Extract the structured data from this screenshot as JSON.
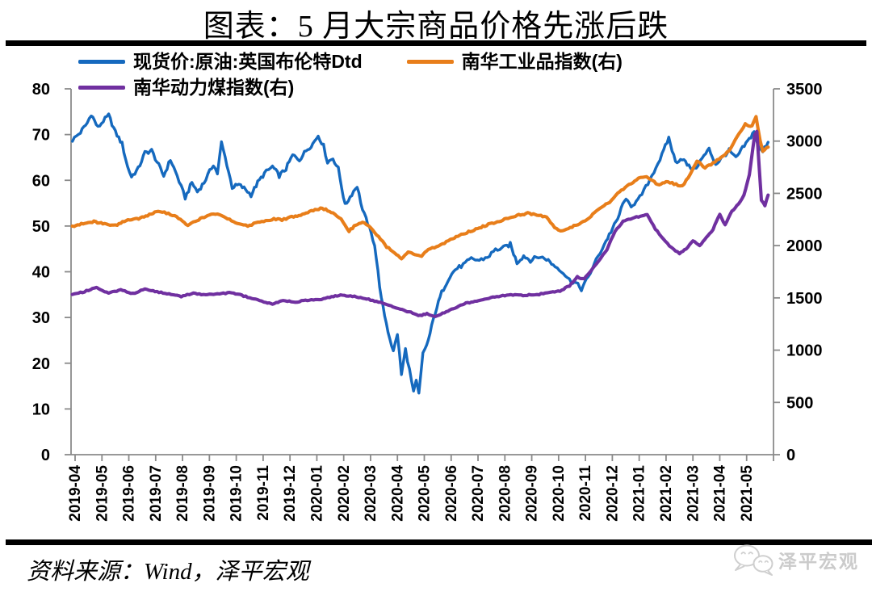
{
  "title": "图表：5 月大宗商品价格先涨后跌",
  "source_note": "资料来源：Wind，泽平宏观",
  "watermark": "泽平宏观",
  "chart_data": {
    "type": "line",
    "title": "图表：5 月大宗商品价格先涨后跌",
    "x_unit": "months since 2019-04 (0 = 2019-04 tick, fractional = day within month)",
    "x_labels": [
      "2019-04",
      "2019-05",
      "2019-06",
      "2019-07",
      "2019-08",
      "2019-09",
      "2019-10",
      "2019-11",
      "2019-12",
      "2020-01",
      "2020-02",
      "2020-03",
      "2020-04",
      "2020-05",
      "2020-06",
      "2020-07",
      "2020-08",
      "2020-09",
      "2020-10",
      "2020-11",
      "2020-12",
      "2021-01",
      "2021-02",
      "2021-03",
      "2021-04",
      "2021-05"
    ],
    "grid": false,
    "legend_position": "top-left",
    "axis_color": "#8a8a8a",
    "left_axis": {
      "min": 0,
      "max": 80,
      "ticks": [
        0,
        10,
        20,
        30,
        40,
        50,
        60,
        70,
        80
      ]
    },
    "right_axis": {
      "min": 0,
      "max": 3500,
      "ticks": [
        0,
        500,
        1000,
        1500,
        2000,
        2500,
        3000,
        3500
      ]
    },
    "series": [
      {
        "id": "brent",
        "name": "现货价:原油:英国布伦特Dtd",
        "axis": "left",
        "color": "#1569be",
        "points": [
          [
            -0.1,
            68.8
          ],
          [
            0.2,
            70.5
          ],
          [
            0.45,
            72.5
          ],
          [
            0.6,
            74.5
          ],
          [
            0.85,
            71.5
          ],
          [
            1.05,
            73
          ],
          [
            1.25,
            74.2
          ],
          [
            1.5,
            70.5
          ],
          [
            1.75,
            68
          ],
          [
            1.95,
            63
          ],
          [
            2.1,
            60.8
          ],
          [
            2.35,
            62.5
          ],
          [
            2.6,
            66
          ],
          [
            2.85,
            66.5
          ],
          [
            3.05,
            64
          ],
          [
            3.3,
            61
          ],
          [
            3.55,
            64.5
          ],
          [
            3.8,
            61
          ],
          [
            3.95,
            58.5
          ],
          [
            4.1,
            56.2
          ],
          [
            4.35,
            59.5
          ],
          [
            4.55,
            57.5
          ],
          [
            4.8,
            59.5
          ],
          [
            5.15,
            63.5
          ],
          [
            5.3,
            61.5
          ],
          [
            5.45,
            68.2
          ],
          [
            5.65,
            63.5
          ],
          [
            5.85,
            58.5
          ],
          [
            6.1,
            59
          ],
          [
            6.35,
            58
          ],
          [
            6.55,
            56.8
          ],
          [
            6.8,
            59.5
          ],
          [
            7.05,
            61.5
          ],
          [
            7.35,
            63
          ],
          [
            7.6,
            61
          ],
          [
            7.85,
            62.5
          ],
          [
            8.1,
            65.5
          ],
          [
            8.35,
            64.5
          ],
          [
            8.6,
            66.5
          ],
          [
            8.85,
            68
          ],
          [
            9.05,
            69.8
          ],
          [
            9.25,
            67.5
          ],
          [
            9.4,
            64
          ],
          [
            9.6,
            64.8
          ],
          [
            9.8,
            62.5
          ],
          [
            10.05,
            54.5
          ],
          [
            10.3,
            57
          ],
          [
            10.5,
            58.8
          ],
          [
            10.7,
            53.5
          ],
          [
            10.9,
            50.5
          ],
          [
            11.15,
            46
          ],
          [
            11.4,
            34
          ],
          [
            11.65,
            27
          ],
          [
            11.85,
            22.5
          ],
          [
            12,
            26.5
          ],
          [
            12.15,
            17.5
          ],
          [
            12.3,
            23
          ],
          [
            12.45,
            18.5
          ],
          [
            12.6,
            13.5
          ],
          [
            12.7,
            16
          ],
          [
            12.8,
            13.2
          ],
          [
            12.95,
            22
          ],
          [
            13.15,
            25
          ],
          [
            13.4,
            31
          ],
          [
            13.65,
            35.5
          ],
          [
            13.9,
            38.5
          ],
          [
            14.15,
            40.5
          ],
          [
            14.45,
            41.5
          ],
          [
            14.75,
            42.8
          ],
          [
            15.05,
            42.5
          ],
          [
            15.35,
            43.2
          ],
          [
            15.65,
            44.8
          ],
          [
            15.95,
            45.2
          ],
          [
            16.2,
            46
          ],
          [
            16.45,
            42
          ],
          [
            16.7,
            43.5
          ],
          [
            16.95,
            42.5
          ],
          [
            17.25,
            43.3
          ],
          [
            17.55,
            42.8
          ],
          [
            17.8,
            41.5
          ],
          [
            18.1,
            40.3
          ],
          [
            18.4,
            38.2
          ],
          [
            18.65,
            37.5
          ],
          [
            18.85,
            36.2
          ],
          [
            19.1,
            38.8
          ],
          [
            19.4,
            42.5
          ],
          [
            19.7,
            46
          ],
          [
            19.95,
            48.8
          ],
          [
            20.2,
            51.5
          ],
          [
            20.45,
            55.8
          ],
          [
            20.7,
            54.5
          ],
          [
            20.95,
            55.5
          ],
          [
            21.25,
            58.5
          ],
          [
            21.55,
            62
          ],
          [
            21.85,
            65.5
          ],
          [
            22.1,
            69.3
          ],
          [
            22.35,
            64
          ],
          [
            22.6,
            64.8
          ],
          [
            22.85,
            63
          ],
          [
            23.05,
            62.3
          ],
          [
            23.35,
            64.8
          ],
          [
            23.6,
            66.8
          ],
          [
            23.85,
            63.5
          ],
          [
            24.1,
            65
          ],
          [
            24.35,
            66.5
          ],
          [
            24.6,
            64.8
          ],
          [
            24.85,
            67
          ],
          [
            25.1,
            69
          ],
          [
            25.28,
            70.8
          ],
          [
            25.45,
            67
          ],
          [
            25.6,
            66.3
          ],
          [
            25.8,
            68.5
          ]
        ]
      },
      {
        "id": "nh-industrial",
        "name": "南华工业品指数(右)",
        "axis": "right",
        "color": "#e87e1a",
        "points": [
          [
            -0.1,
            2185
          ],
          [
            0.3,
            2215
          ],
          [
            0.7,
            2230
          ],
          [
            1.1,
            2205
          ],
          [
            1.5,
            2190
          ],
          [
            1.9,
            2240
          ],
          [
            2.3,
            2255
          ],
          [
            2.7,
            2290
          ],
          [
            3.1,
            2330
          ],
          [
            3.4,
            2310
          ],
          [
            3.7,
            2290
          ],
          [
            4,
            2230
          ],
          [
            4.2,
            2190
          ],
          [
            4.6,
            2250
          ],
          [
            5,
            2300
          ],
          [
            5.3,
            2305
          ],
          [
            5.6,
            2270
          ],
          [
            5.9,
            2230
          ],
          [
            6.2,
            2200
          ],
          [
            6.5,
            2190
          ],
          [
            6.8,
            2225
          ],
          [
            7.1,
            2240
          ],
          [
            7.4,
            2255
          ],
          [
            7.7,
            2245
          ],
          [
            8,
            2270
          ],
          [
            8.4,
            2290
          ],
          [
            8.8,
            2330
          ],
          [
            9.2,
            2360
          ],
          [
            9.6,
            2310
          ],
          [
            9.9,
            2260
          ],
          [
            10.2,
            2140
          ],
          [
            10.45,
            2200
          ],
          [
            10.7,
            2230
          ],
          [
            11,
            2170
          ],
          [
            11.3,
            2085
          ],
          [
            11.6,
            1990
          ],
          [
            11.9,
            1925
          ],
          [
            12.15,
            1870
          ],
          [
            12.4,
            1945
          ],
          [
            12.65,
            1905
          ],
          [
            12.9,
            1900
          ],
          [
            13.15,
            1960
          ],
          [
            13.45,
            1990
          ],
          [
            13.75,
            2025
          ],
          [
            14.05,
            2070
          ],
          [
            14.45,
            2115
          ],
          [
            14.85,
            2150
          ],
          [
            15.25,
            2190
          ],
          [
            15.65,
            2225
          ],
          [
            16.05,
            2255
          ],
          [
            16.45,
            2290
          ],
          [
            16.85,
            2310
          ],
          [
            17.2,
            2295
          ],
          [
            17.55,
            2270
          ],
          [
            17.85,
            2170
          ],
          [
            18.15,
            2140
          ],
          [
            18.5,
            2180
          ],
          [
            18.85,
            2215
          ],
          [
            19.2,
            2280
          ],
          [
            19.55,
            2360
          ],
          [
            19.9,
            2420
          ],
          [
            20.2,
            2500
          ],
          [
            20.55,
            2570
          ],
          [
            20.9,
            2630
          ],
          [
            21.2,
            2665
          ],
          [
            21.5,
            2620
          ],
          [
            21.75,
            2575
          ],
          [
            22,
            2615
          ],
          [
            22.3,
            2590
          ],
          [
            22.6,
            2565
          ],
          [
            22.9,
            2680
          ],
          [
            23.15,
            2810
          ],
          [
            23.45,
            2745
          ],
          [
            23.75,
            2790
          ],
          [
            24.05,
            2840
          ],
          [
            24.35,
            2905
          ],
          [
            24.65,
            3040
          ],
          [
            24.95,
            3160
          ],
          [
            25.2,
            3140
          ],
          [
            25.35,
            3230
          ],
          [
            25.5,
            3000
          ],
          [
            25.6,
            2905
          ],
          [
            25.8,
            2950
          ]
        ]
      },
      {
        "id": "nh-thermal-coal",
        "name": "南华动力煤指数(右)",
        "axis": "right",
        "color": "#7030a0",
        "points": [
          [
            -0.1,
            1530
          ],
          [
            0.35,
            1560
          ],
          [
            0.8,
            1600
          ],
          [
            1.25,
            1545
          ],
          [
            1.7,
            1575
          ],
          [
            2.15,
            1540
          ],
          [
            2.6,
            1585
          ],
          [
            3.05,
            1560
          ],
          [
            3.5,
            1535
          ],
          [
            3.95,
            1515
          ],
          [
            4.4,
            1545
          ],
          [
            4.85,
            1530
          ],
          [
            5.3,
            1535
          ],
          [
            5.75,
            1550
          ],
          [
            6.2,
            1525
          ],
          [
            6.65,
            1490
          ],
          [
            7.1,
            1455
          ],
          [
            7.35,
            1442
          ],
          [
            7.75,
            1475
          ],
          [
            8.2,
            1460
          ],
          [
            8.65,
            1480
          ],
          [
            9.1,
            1485
          ],
          [
            9.55,
            1512
          ],
          [
            9.95,
            1528
          ],
          [
            10.4,
            1512
          ],
          [
            10.85,
            1492
          ],
          [
            11.3,
            1460
          ],
          [
            11.7,
            1430
          ],
          [
            12.1,
            1390
          ],
          [
            12.5,
            1360
          ],
          [
            12.85,
            1330
          ],
          [
            13.1,
            1348
          ],
          [
            13.35,
            1320
          ],
          [
            13.75,
            1358
          ],
          [
            14.15,
            1405
          ],
          [
            14.55,
            1448
          ],
          [
            14.95,
            1472
          ],
          [
            15.4,
            1498
          ],
          [
            15.85,
            1518
          ],
          [
            16.3,
            1530
          ],
          [
            16.75,
            1525
          ],
          [
            17.2,
            1532
          ],
          [
            17.65,
            1548
          ],
          [
            18.05,
            1568
          ],
          [
            18.4,
            1615
          ],
          [
            18.7,
            1700
          ],
          [
            18.95,
            1680
          ],
          [
            19.2,
            1760
          ],
          [
            19.5,
            1855
          ],
          [
            19.8,
            1965
          ],
          [
            20.1,
            2140
          ],
          [
            20.4,
            2230
          ],
          [
            20.75,
            2265
          ],
          [
            21.05,
            2280
          ],
          [
            21.3,
            2295
          ],
          [
            21.6,
            2160
          ],
          [
            21.9,
            2060
          ],
          [
            22.2,
            1980
          ],
          [
            22.5,
            1925
          ],
          [
            22.75,
            1970
          ],
          [
            23,
            2045
          ],
          [
            23.25,
            2000
          ],
          [
            23.5,
            2080
          ],
          [
            23.75,
            2155
          ],
          [
            24,
            2300
          ],
          [
            24.2,
            2195
          ],
          [
            24.45,
            2330
          ],
          [
            24.7,
            2400
          ],
          [
            24.9,
            2480
          ],
          [
            25.1,
            2680
          ],
          [
            25.3,
            3060
          ],
          [
            25.38,
            3095
          ],
          [
            25.55,
            2430
          ],
          [
            25.68,
            2385
          ],
          [
            25.8,
            2480
          ]
        ]
      }
    ]
  }
}
